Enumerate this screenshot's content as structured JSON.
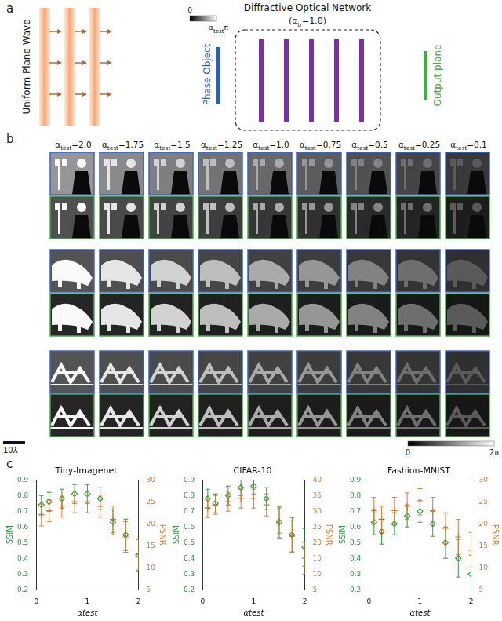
{
  "panel_a": {
    "label": "a",
    "wave": "Uniform Plane Wave",
    "object": "Phase Object",
    "colorbar": {
      "min": "0",
      "max": [
        {
          "text": "α"
        },
        {
          "text": "test",
          "sub": true
        },
        {
          "text": "π"
        }
      ]
    },
    "network": {
      "title": "Diffractive Optical Network",
      "param": [
        {
          "text": "(α"
        },
        {
          "text": "tr",
          "sub": true
        },
        {
          "text": "=1.0)"
        }
      ]
    },
    "output": "Output plane"
  },
  "panel_b": {
    "label": "b",
    "columns": [
      [
        {
          "text": "α"
        },
        {
          "text": "test",
          "sub": true
        },
        {
          "text": "=2.0"
        }
      ],
      [
        {
          "text": "α"
        },
        {
          "text": "test",
          "sub": true
        },
        {
          "text": "=1.75"
        }
      ],
      [
        {
          "text": "α"
        },
        {
          "text": "test",
          "sub": true
        },
        {
          "text": "=1.5"
        }
      ],
      [
        {
          "text": "α"
        },
        {
          "text": "test",
          "sub": true
        },
        {
          "text": "=1.25"
        }
      ],
      [
        {
          "text": "α"
        },
        {
          "text": "test",
          "sub": true
        },
        {
          "text": "=1.0"
        }
      ],
      [
        {
          "text": "α"
        },
        {
          "text": "test",
          "sub": true
        },
        {
          "text": "=0.75"
        }
      ],
      [
        {
          "text": "α"
        },
        {
          "text": "test",
          "sub": true
        },
        {
          "text": "=0.5"
        }
      ],
      [
        {
          "text": "α"
        },
        {
          "text": "test",
          "sub": true
        },
        {
          "text": "=0.25"
        }
      ],
      [
        {
          "text": "α"
        },
        {
          "text": "test",
          "sub": true
        },
        {
          "text": "=0.1"
        }
      ]
    ],
    "scale_bar": "10λ",
    "colorbar": {
      "min": "0",
      "max": "2π"
    }
  },
  "panel_c": {
    "label": "c"
  },
  "chart_data": [
    {
      "type": "scatter",
      "title": "Tiny-Imagenet",
      "x_label": "αtest",
      "grid": false,
      "x": [
        0.1,
        0.25,
        0.5,
        0.75,
        1.0,
        1.25,
        1.5,
        1.75,
        2.0
      ],
      "xlim": [
        0,
        2
      ],
      "xticks": [
        0,
        1,
        2
      ],
      "ylim": [
        0.2,
        0.9
      ],
      "yticks": [
        0.2,
        0.3,
        0.4,
        0.5,
        0.6,
        0.7,
        0.8,
        0.9
      ],
      "y2lim": [
        5,
        30
      ],
      "y2ticks": [
        5,
        10,
        15,
        20,
        25,
        30
      ],
      "series": [
        {
          "name": "SSIM",
          "color": "#2e9b3f",
          "marker": "diamond",
          "values": [
            0.74,
            0.76,
            0.78,
            0.81,
            0.81,
            0.78,
            0.63,
            0.55,
            0.42
          ],
          "errors": [
            0.06,
            0.06,
            0.06,
            0.06,
            0.06,
            0.07,
            0.08,
            0.1,
            0.1
          ]
        },
        {
          "name": "PSNR",
          "color": "#e8772e",
          "marker": "cross",
          "axis": "y2",
          "values": [
            22,
            23,
            24,
            25,
            25,
            24,
            21,
            17,
            13
          ],
          "errors": [
            2.5,
            2.5,
            2.5,
            2.5,
            2.5,
            2.5,
            3,
            3.5,
            3.5
          ]
        }
      ]
    },
    {
      "type": "scatter",
      "title": "CIFAR-10",
      "x_label": "αtest",
      "grid": false,
      "x": [
        0.1,
        0.25,
        0.5,
        0.75,
        1.0,
        1.25,
        1.5,
        1.75,
        2.0
      ],
      "xlim": [
        0,
        2
      ],
      "xticks": [
        0,
        1,
        2
      ],
      "ylim": [
        0.2,
        0.9
      ],
      "yticks": [
        0.2,
        0.3,
        0.4,
        0.5,
        0.6,
        0.7,
        0.8,
        0.9
      ],
      "y2lim": [
        5,
        40
      ],
      "y2ticks": [
        5,
        10,
        15,
        20,
        25,
        30,
        35,
        40
      ],
      "series": [
        {
          "name": "SSIM",
          "color": "#2e9b3f",
          "marker": "diamond",
          "values": [
            0.78,
            0.75,
            0.8,
            0.85,
            0.86,
            0.78,
            0.63,
            0.55,
            0.47
          ],
          "errors": [
            0.06,
            0.06,
            0.06,
            0.05,
            0.05,
            0.07,
            0.1,
            0.11,
            0.12
          ]
        },
        {
          "name": "PSNR",
          "color": "#e8772e",
          "marker": "cross",
          "axis": "y2",
          "values": [
            31,
            32,
            33,
            34,
            34,
            32,
            27,
            22,
            15
          ],
          "errors": [
            3,
            3,
            3,
            3,
            3,
            3.5,
            4,
            5,
            5
          ]
        }
      ]
    },
    {
      "type": "scatter",
      "title": "Fashion-MNIST",
      "x_label": "αtest",
      "grid": false,
      "x": [
        0.1,
        0.25,
        0.5,
        0.75,
        1.0,
        1.25,
        1.5,
        1.75,
        2.0
      ],
      "xlim": [
        0,
        2
      ],
      "xticks": [
        0,
        1,
        2
      ],
      "ylim": [
        0.2,
        0.9
      ],
      "yticks": [
        0.2,
        0.3,
        0.4,
        0.5,
        0.6,
        0.7,
        0.8,
        0.9
      ],
      "y2lim": [
        5,
        30
      ],
      "y2ticks": [
        5,
        10,
        15,
        20,
        25,
        30
      ],
      "series": [
        {
          "name": "SSIM",
          "color": "#2e9b3f",
          "marker": "diamond",
          "values": [
            0.63,
            0.57,
            0.62,
            0.67,
            0.7,
            0.62,
            0.5,
            0.4,
            0.3
          ],
          "errors": [
            0.08,
            0.08,
            0.07,
            0.07,
            0.07,
            0.08,
            0.1,
            0.12,
            0.12
          ]
        },
        {
          "name": "PSNR",
          "color": "#e8772e",
          "marker": "cross",
          "axis": "y2",
          "values": [
            23,
            21,
            23,
            24,
            25,
            23,
            19,
            17,
            14
          ],
          "errors": [
            3,
            3,
            3,
            3,
            3,
            3,
            3.5,
            4,
            4
          ]
        }
      ]
    }
  ]
}
